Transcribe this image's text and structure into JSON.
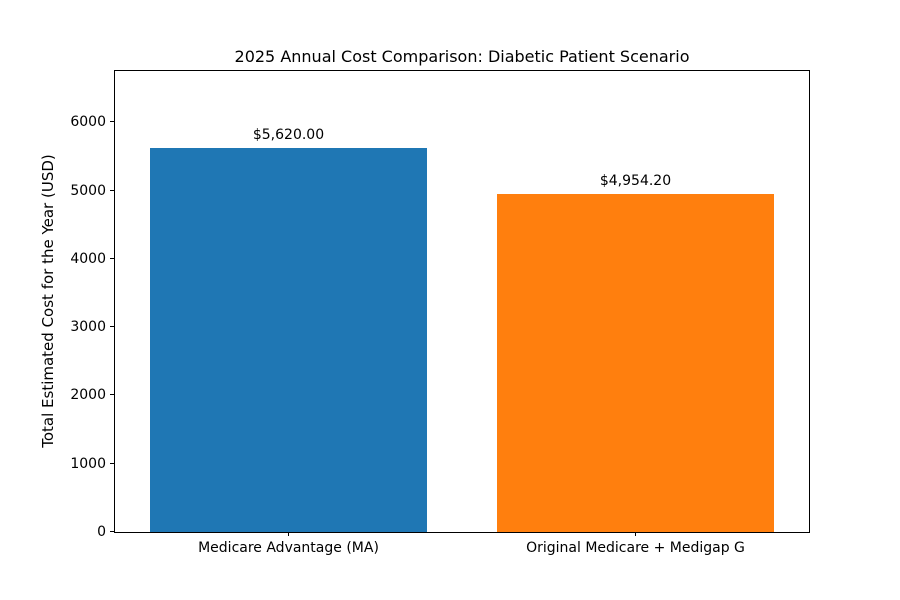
{
  "chart_data": {
    "type": "bar",
    "title": "2025 Annual Cost Comparison: Diabetic Patient Scenario",
    "xlabel": "",
    "ylabel": "Total Estimated Cost for the Year (USD)",
    "categories": [
      "Medicare Advantage (MA)",
      "Original Medicare + Medigap G"
    ],
    "values": [
      5620.0,
      4954.2
    ],
    "bar_labels": [
      "$5,620.00",
      "$4,954.20"
    ],
    "bar_colors": [
      "#1f77b4",
      "#ff7f0e"
    ],
    "ylim": [
      0,
      6750
    ],
    "yticks": [
      0,
      1000,
      2000,
      3000,
      4000,
      5000,
      6000
    ],
    "grid": false,
    "legend": "none",
    "background_color": "#ffffff",
    "frame_color": "#000000"
  }
}
